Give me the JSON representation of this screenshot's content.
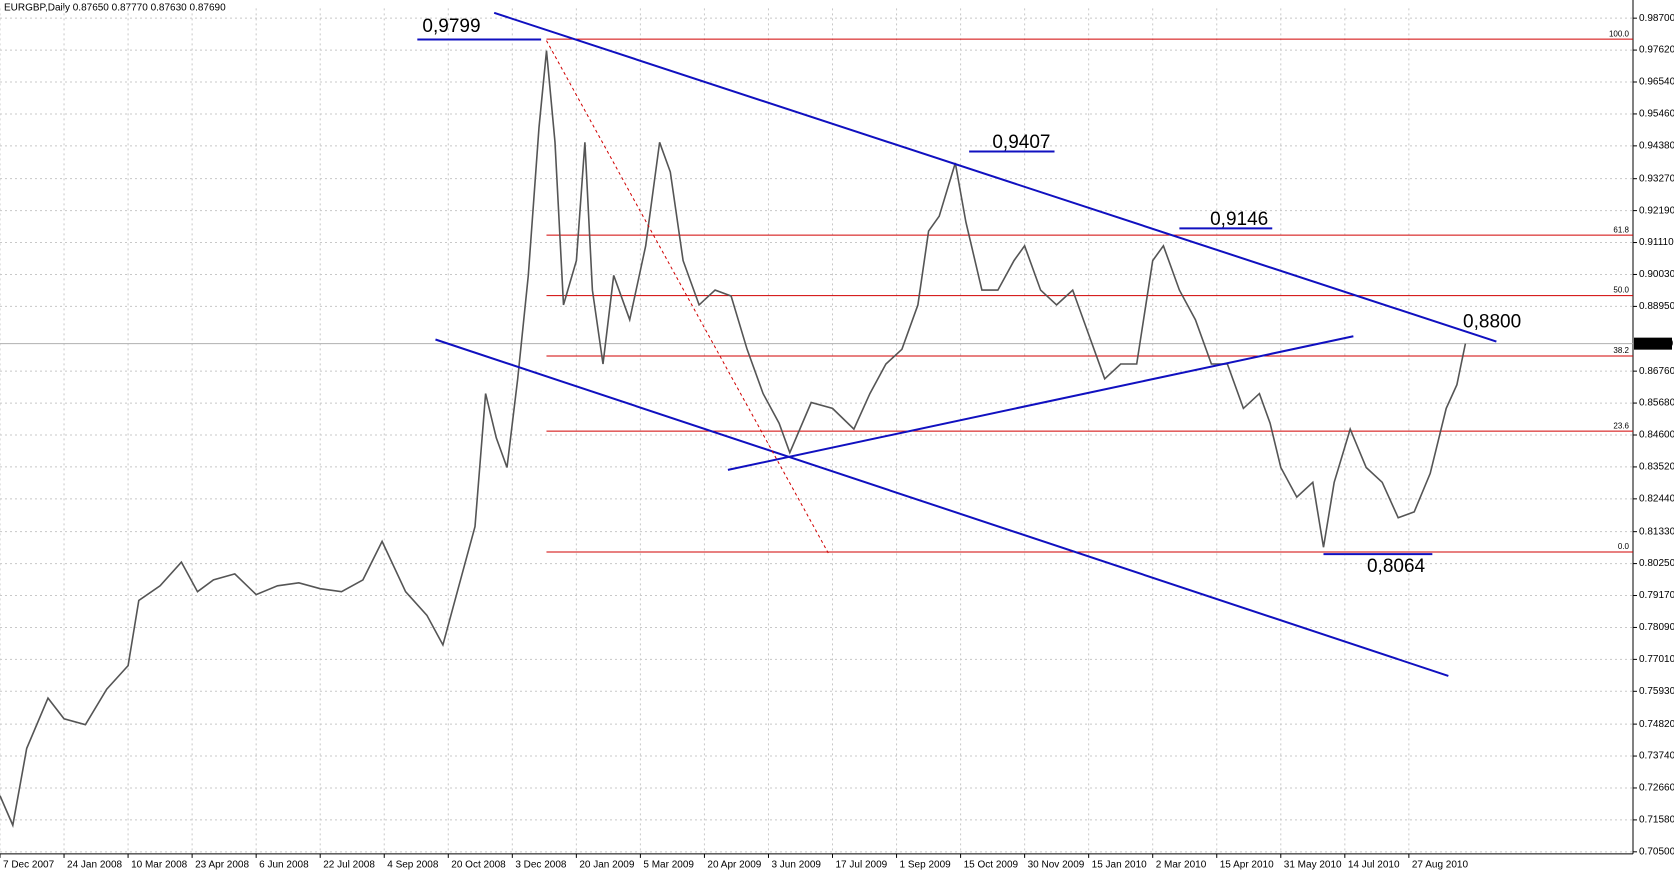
{
  "chart_data": {
    "type": "line",
    "title": "EURGBP,Daily  0.87650 0.87770 0.87630 0.87690",
    "x": [
      0,
      12,
      25,
      45,
      60,
      80,
      100,
      120,
      130,
      150,
      170,
      185,
      200,
      220,
      240,
      260,
      280,
      300,
      320,
      340,
      358,
      380,
      400,
      415,
      430,
      445,
      455,
      465,
      475,
      485,
      495,
      505,
      512,
      520,
      528,
      540,
      548,
      555,
      565,
      575,
      590,
      605,
      618,
      628,
      640,
      655,
      670,
      685,
      700,
      715,
      730,
      740,
      760,
      780,
      800,
      815,
      830,
      845,
      860,
      870,
      880,
      895,
      905,
      920,
      935,
      950,
      960,
      975,
      990,
      1005,
      1020,
      1035,
      1050,
      1065,
      1080,
      1090,
      1105,
      1120,
      1135,
      1150,
      1165,
      1180,
      1190,
      1200,
      1215,
      1230,
      1240,
      1250,
      1265,
      1280,
      1295,
      1310,
      1325,
      1340,
      1355,
      1365,
      1373
    ],
    "series": [
      {
        "color": "#555555",
        "values": [
          0.724,
          0.714,
          0.74,
          0.757,
          0.75,
          0.748,
          0.76,
          0.768,
          0.79,
          0.795,
          0.803,
          0.793,
          0.797,
          0.799,
          0.792,
          0.795,
          0.796,
          0.794,
          0.793,
          0.797,
          0.81,
          0.793,
          0.785,
          0.775,
          0.795,
          0.815,
          0.86,
          0.845,
          0.835,
          0.865,
          0.9,
          0.95,
          0.976,
          0.945,
          0.89,
          0.905,
          0.945,
          0.895,
          0.87,
          0.9,
          0.885,
          0.91,
          0.945,
          0.935,
          0.905,
          0.89,
          0.895,
          0.893,
          0.875,
          0.86,
          0.85,
          0.84,
          0.857,
          0.855,
          0.848,
          0.86,
          0.87,
          0.875,
          0.89,
          0.915,
          0.92,
          0.938,
          0.918,
          0.895,
          0.895,
          0.905,
          0.91,
          0.895,
          0.89,
          0.895,
          0.88,
          0.865,
          0.87,
          0.87,
          0.905,
          0.91,
          0.895,
          0.885,
          0.87,
          0.87,
          0.855,
          0.86,
          0.85,
          0.835,
          0.825,
          0.83,
          0.808,
          0.83,
          0.848,
          0.835,
          0.83,
          0.818,
          0.82,
          0.833,
          0.855,
          0.863,
          0.8769
        ]
      }
    ],
    "xlim": [
      0,
      1530
    ],
    "xticks": [
      {
        "value": 0,
        "label": "7 Dec 2007"
      },
      {
        "value": 60,
        "label": "24 Jan 2008"
      },
      {
        "value": 120,
        "label": "10 Mar 2008"
      },
      {
        "value": 180,
        "label": "23 Apr 2008"
      },
      {
        "value": 240,
        "label": "6 Jun 2008"
      },
      {
        "value": 300,
        "label": "22 Jul 2008"
      },
      {
        "value": 360,
        "label": "4 Sep 2008"
      },
      {
        "value": 420,
        "label": "20 Oct 2008"
      },
      {
        "value": 480,
        "label": "3 Dec 2008"
      },
      {
        "value": 540,
        "label": "20 Jan 2009"
      },
      {
        "value": 600,
        "label": "5 Mar 2009"
      },
      {
        "value": 660,
        "label": "20 Apr 2009"
      },
      {
        "value": 720,
        "label": "3 Jun 2009"
      },
      {
        "value": 780,
        "label": "17 Jul 2009"
      },
      {
        "value": 840,
        "label": "1 Sep 2009"
      },
      {
        "value": 900,
        "label": "15 Oct 2009"
      },
      {
        "value": 960,
        "label": "30 Nov 2009"
      },
      {
        "value": 1020,
        "label": "15 Jan 2010"
      },
      {
        "value": 1080,
        "label": "2 Mar 2010"
      },
      {
        "value": 1140,
        "label": "15 Apr 2010"
      },
      {
        "value": 1200,
        "label": "31 May 2010"
      },
      {
        "value": 1260,
        "label": "14 Jul 2010"
      },
      {
        "value": 1320,
        "label": "27 Aug 2010"
      }
    ],
    "ylim": [
      0.7043,
      0.9903
    ],
    "yticks": [
      {
        "value": 0.987,
        "label": "0.98700"
      },
      {
        "value": 0.9762,
        "label": "0.97620"
      },
      {
        "value": 0.9654,
        "label": "0.96540"
      },
      {
        "value": 0.9546,
        "label": "0.95460"
      },
      {
        "value": 0.9438,
        "label": "0.94380"
      },
      {
        "value": 0.9327,
        "label": "0.93270"
      },
      {
        "value": 0.9219,
        "label": "0.92190"
      },
      {
        "value": 0.9111,
        "label": "0.91110"
      },
      {
        "value": 0.9003,
        "label": "0.90030"
      },
      {
        "value": 0.8895,
        "label": "0.88950"
      },
      {
        "value": 0.8676,
        "label": "0.86760"
      },
      {
        "value": 0.8568,
        "label": "0.85680"
      },
      {
        "value": 0.846,
        "label": "0.84600"
      },
      {
        "value": 0.8352,
        "label": "0.83520"
      },
      {
        "value": 0.8244,
        "label": "0.82440"
      },
      {
        "value": 0.8133,
        "label": "0.81330"
      },
      {
        "value": 0.8025,
        "label": "0.80250"
      },
      {
        "value": 0.7917,
        "label": "0.79170"
      },
      {
        "value": 0.7809,
        "label": "0.78090"
      },
      {
        "value": 0.7701,
        "label": "0.77010"
      },
      {
        "value": 0.7593,
        "label": "0.75930"
      },
      {
        "value": 0.7482,
        "label": "0.74820"
      },
      {
        "value": 0.7374,
        "label": "0.73740"
      },
      {
        "value": 0.7266,
        "label": "0.72660"
      },
      {
        "value": 0.7158,
        "label": "0.71580"
      },
      {
        "value": 0.705,
        "label": "0.70500"
      }
    ],
    "grid": true,
    "current_price": {
      "value": 0.8769,
      "label": "0.87690"
    },
    "fib_levels": {
      "color": "#d00000",
      "x_start": 512,
      "levels": [
        {
          "value": 0.9799,
          "label": "100.0"
        },
        {
          "value": 0.9136,
          "label": "61.8"
        },
        {
          "value": 0.89315,
          "label": "50.0"
        },
        {
          "value": 0.8727,
          "label": "38.2"
        },
        {
          "value": 0.8473,
          "label": "23.6"
        },
        {
          "value": 0.8064,
          "label": "0.0"
        }
      ]
    },
    "trendlines": [
      {
        "color": "#1010c0",
        "dashed": false,
        "x": [
          463,
          1402
        ],
        "y": [
          0.9888,
          0.8776
        ]
      },
      {
        "color": "#1010c0",
        "dashed": false,
        "x": [
          408,
          1357
        ],
        "y": [
          0.8783,
          0.7645
        ]
      },
      {
        "color": "#1010c0",
        "dashed": false,
        "x": [
          682,
          1268
        ],
        "y": [
          0.8342,
          0.8794
        ]
      },
      {
        "color": "#d00000",
        "dashed": true,
        "x": [
          512,
          776
        ],
        "y": [
          0.9794,
          0.8061
        ]
      },
      {
        "color": "#1010c0",
        "dashed": false,
        "x": [
          391,
          507
        ],
        "y": [
          0.9798,
          0.9798
        ]
      },
      {
        "color": "#1010c0",
        "dashed": false,
        "x": [
          908,
          988
        ],
        "y": [
          0.9419,
          0.9419
        ]
      },
      {
        "color": "#1010c0",
        "dashed": false,
        "x": [
          1105,
          1192
        ],
        "y": [
          0.9159,
          0.9159
        ]
      },
      {
        "color": "#1010c0",
        "dashed": false,
        "x": [
          1240,
          1342
        ],
        "y": [
          0.8057,
          0.8057
        ]
      }
    ],
    "price_labels": [
      {
        "value": 0.9799,
        "label": "0,9799",
        "x": 423,
        "position": "above"
      },
      {
        "value": 0.9407,
        "label": "0,9407",
        "x": 957,
        "position": "above"
      },
      {
        "value": 0.9146,
        "label": "0,9146",
        "x": 1161,
        "position": "above"
      },
      {
        "value": 0.88,
        "label": "0,8800",
        "x": 1398,
        "position": "above"
      },
      {
        "value": 0.8064,
        "label": "0,8064",
        "x": 1308,
        "position": "below"
      }
    ]
  }
}
